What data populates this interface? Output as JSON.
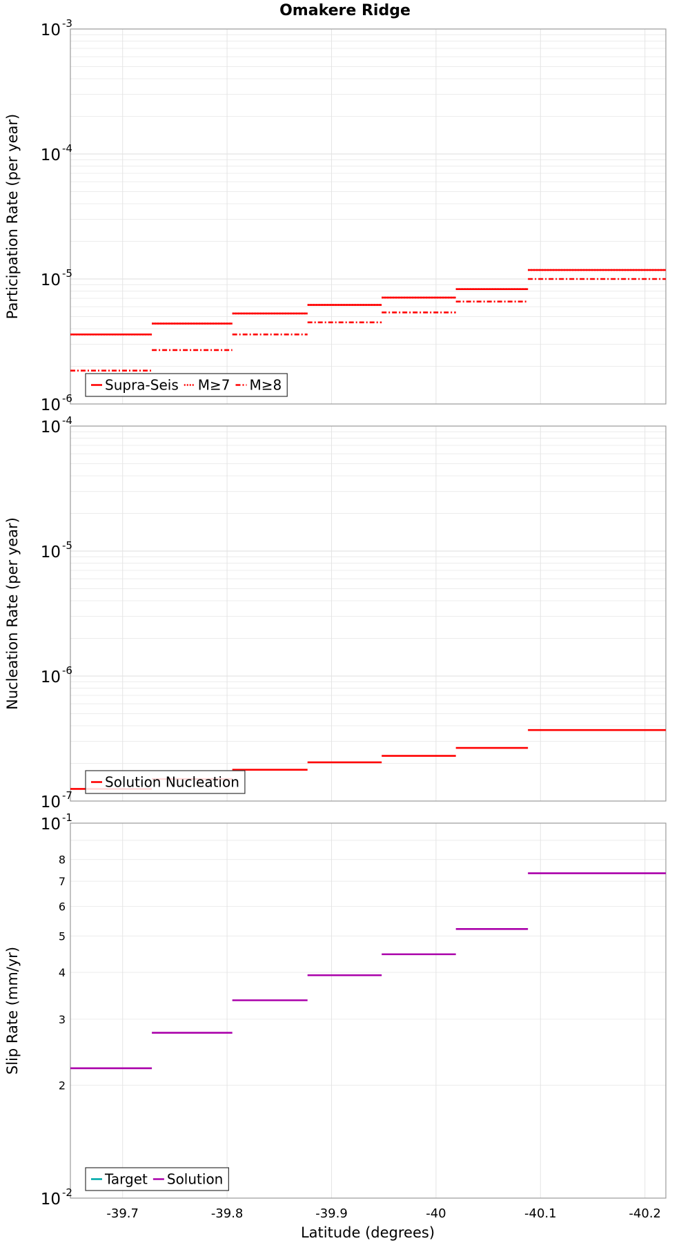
{
  "title": "Omakere Ridge",
  "xlabel": "Latitude (degrees)",
  "chart_data": [
    {
      "type": "line",
      "title": "Omakere Ridge",
      "ylabel": "Participation Rate (per year)",
      "yscale": "log",
      "ylim": [
        1e-06,
        0.001
      ],
      "xlim": [
        -39.65,
        -40.22
      ],
      "x_ticks": [
        "-39.7",
        "-39.8",
        "-39.9",
        "-40",
        "-40.1",
        "-40.2"
      ],
      "y_major_ticks": [
        {
          "base": "10",
          "exp": "-6"
        },
        {
          "base": "10",
          "exp": "-5"
        },
        {
          "base": "10",
          "exp": "-4"
        },
        {
          "base": "10",
          "exp": "-3"
        }
      ],
      "legend": {
        "placement": "bottom-left"
      },
      "series": [
        {
          "name": "Supra-Seis",
          "color": "#ff0000",
          "style": "solid",
          "segments": [
            {
              "x0": -39.65,
              "x1": -39.728,
              "y": 3.6e-06
            },
            {
              "x0": -39.728,
              "x1": -39.805,
              "y": 4.4e-06
            },
            {
              "x0": -39.805,
              "x1": -39.877,
              "y": 5.3e-06
            },
            {
              "x0": -39.877,
              "x1": -39.948,
              "y": 6.2e-06
            },
            {
              "x0": -39.948,
              "x1": -40.019,
              "y": 7.1e-06
            },
            {
              "x0": -40.019,
              "x1": -40.088,
              "y": 8.3e-06
            },
            {
              "x0": -40.088,
              "x1": -40.22,
              "y": 1.18e-05
            }
          ]
        },
        {
          "name": "M≥7",
          "color": "#ff0000",
          "style": "dotted",
          "segments": [
            {
              "x0": -39.65,
              "x1": -39.728,
              "y": 3.6e-06
            },
            {
              "x0": -39.728,
              "x1": -39.805,
              "y": 4.4e-06
            },
            {
              "x0": -39.805,
              "x1": -39.877,
              "y": 5.3e-06
            },
            {
              "x0": -39.877,
              "x1": -39.948,
              "y": 6.2e-06
            },
            {
              "x0": -39.948,
              "x1": -40.019,
              "y": 7.1e-06
            },
            {
              "x0": -40.019,
              "x1": -40.088,
              "y": 8.3e-06
            },
            {
              "x0": -40.088,
              "x1": -40.22,
              "y": 1.18e-05
            }
          ]
        },
        {
          "name": "M≥8",
          "color": "#ff0000",
          "style": "dashdot",
          "segments": [
            {
              "x0": -39.65,
              "x1": -39.728,
              "y": 1.85e-06
            },
            {
              "x0": -39.728,
              "x1": -39.805,
              "y": 2.7e-06
            },
            {
              "x0": -39.805,
              "x1": -39.877,
              "y": 3.6e-06
            },
            {
              "x0": -39.877,
              "x1": -39.948,
              "y": 4.5e-06
            },
            {
              "x0": -39.948,
              "x1": -40.019,
              "y": 5.4e-06
            },
            {
              "x0": -40.019,
              "x1": -40.088,
              "y": 6.6e-06
            },
            {
              "x0": -40.088,
              "x1": -40.22,
              "y": 1e-05
            }
          ]
        }
      ]
    },
    {
      "type": "line",
      "ylabel": "Nucleation Rate (per year)",
      "yscale": "log",
      "ylim": [
        1e-07,
        0.0001
      ],
      "xlim": [
        -39.65,
        -40.22
      ],
      "y_major_ticks": [
        {
          "base": "10",
          "exp": "-7"
        },
        {
          "base": "10",
          "exp": "-6"
        },
        {
          "base": "10",
          "exp": "-5"
        },
        {
          "base": "10",
          "exp": "-4"
        }
      ],
      "legend": {
        "placement": "bottom-left"
      },
      "series": [
        {
          "name": "Solution Nucleation",
          "color": "#ff0000",
          "style": "solid",
          "segments": [
            {
              "x0": -39.65,
              "x1": -39.728,
              "y": 1.25e-07
            },
            {
              "x0": -39.728,
              "x1": -39.805,
              "y": 1.5e-07
            },
            {
              "x0": -39.805,
              "x1": -39.877,
              "y": 1.78e-07
            },
            {
              "x0": -39.877,
              "x1": -39.948,
              "y": 2.04e-07
            },
            {
              "x0": -39.948,
              "x1": -40.019,
              "y": 2.3e-07
            },
            {
              "x0": -40.019,
              "x1": -40.088,
              "y": 2.66e-07
            },
            {
              "x0": -40.088,
              "x1": -40.22,
              "y": 3.7e-07
            }
          ]
        }
      ]
    },
    {
      "type": "line",
      "ylabel": "Slip Rate (mm/yr)",
      "yscale": "log",
      "ylim": [
        0.01,
        0.1
      ],
      "xlim": [
        -39.65,
        -40.22
      ],
      "y_major_ticks": [
        {
          "base": "10",
          "exp": "-2"
        },
        {
          "base": "10",
          "exp": "-1"
        }
      ],
      "y_minor_tick_labels": [
        "2",
        "3",
        "4",
        "5",
        "6",
        "7",
        "8"
      ],
      "legend": {
        "placement": "bottom-left"
      },
      "series": [
        {
          "name": "Target",
          "color": "#00aaaa",
          "style": "solid",
          "segments": []
        },
        {
          "name": "Solution",
          "color": "#aa00aa",
          "style": "solid",
          "segments": [
            {
              "x0": -39.65,
              "x1": -39.728,
              "y": 0.0222
            },
            {
              "x0": -39.728,
              "x1": -39.805,
              "y": 0.0276
            },
            {
              "x0": -39.805,
              "x1": -39.877,
              "y": 0.0337
            },
            {
              "x0": -39.877,
              "x1": -39.948,
              "y": 0.0393
            },
            {
              "x0": -39.948,
              "x1": -40.019,
              "y": 0.0447
            },
            {
              "x0": -40.019,
              "x1": -40.088,
              "y": 0.0522
            },
            {
              "x0": -40.088,
              "x1": -40.22,
              "y": 0.0735
            }
          ]
        }
      ]
    }
  ]
}
